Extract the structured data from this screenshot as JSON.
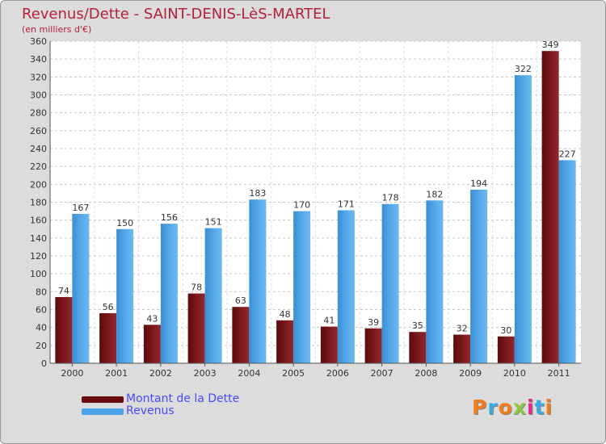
{
  "header": {
    "title": "Revenus/Dette - SAINT-DENIS-LèS-MARTEL",
    "subtitle": "(en milliers d'€)"
  },
  "chart_data": {
    "type": "bar",
    "categories": [
      "2000",
      "2001",
      "2002",
      "2003",
      "2004",
      "2005",
      "2006",
      "2007",
      "2008",
      "2009",
      "2010",
      "2011"
    ],
    "series": [
      {
        "name": "Montant de la Dette",
        "color": "#7a1518",
        "values": [
          74,
          56,
          43,
          78,
          63,
          48,
          41,
          39,
          35,
          32,
          30,
          349
        ]
      },
      {
        "name": "Revenus",
        "color": "#4aa3e8",
        "values": [
          167,
          150,
          156,
          151,
          183,
          170,
          171,
          178,
          182,
          194,
          322,
          227
        ]
      }
    ],
    "ylim": [
      0,
      360
    ],
    "yticks": [
      0,
      20,
      40,
      60,
      80,
      100,
      120,
      140,
      160,
      180,
      200,
      220,
      240,
      260,
      280,
      300,
      320,
      340,
      360
    ],
    "grid": true,
    "legend_position": "bottom-left"
  },
  "legend": {
    "items": [
      {
        "label": "Montant de la Dette",
        "color": "#6b0d10"
      },
      {
        "label": "Revenus",
        "color": "#4aa3e8"
      }
    ]
  },
  "logo": {
    "text": "Proxiti",
    "letter_colors": [
      "#f07d1a",
      "#3aa9e0",
      "#f07d1a",
      "#8dc63f",
      "#e02a8a",
      "#3aa9e0",
      "#f07d1a"
    ]
  }
}
